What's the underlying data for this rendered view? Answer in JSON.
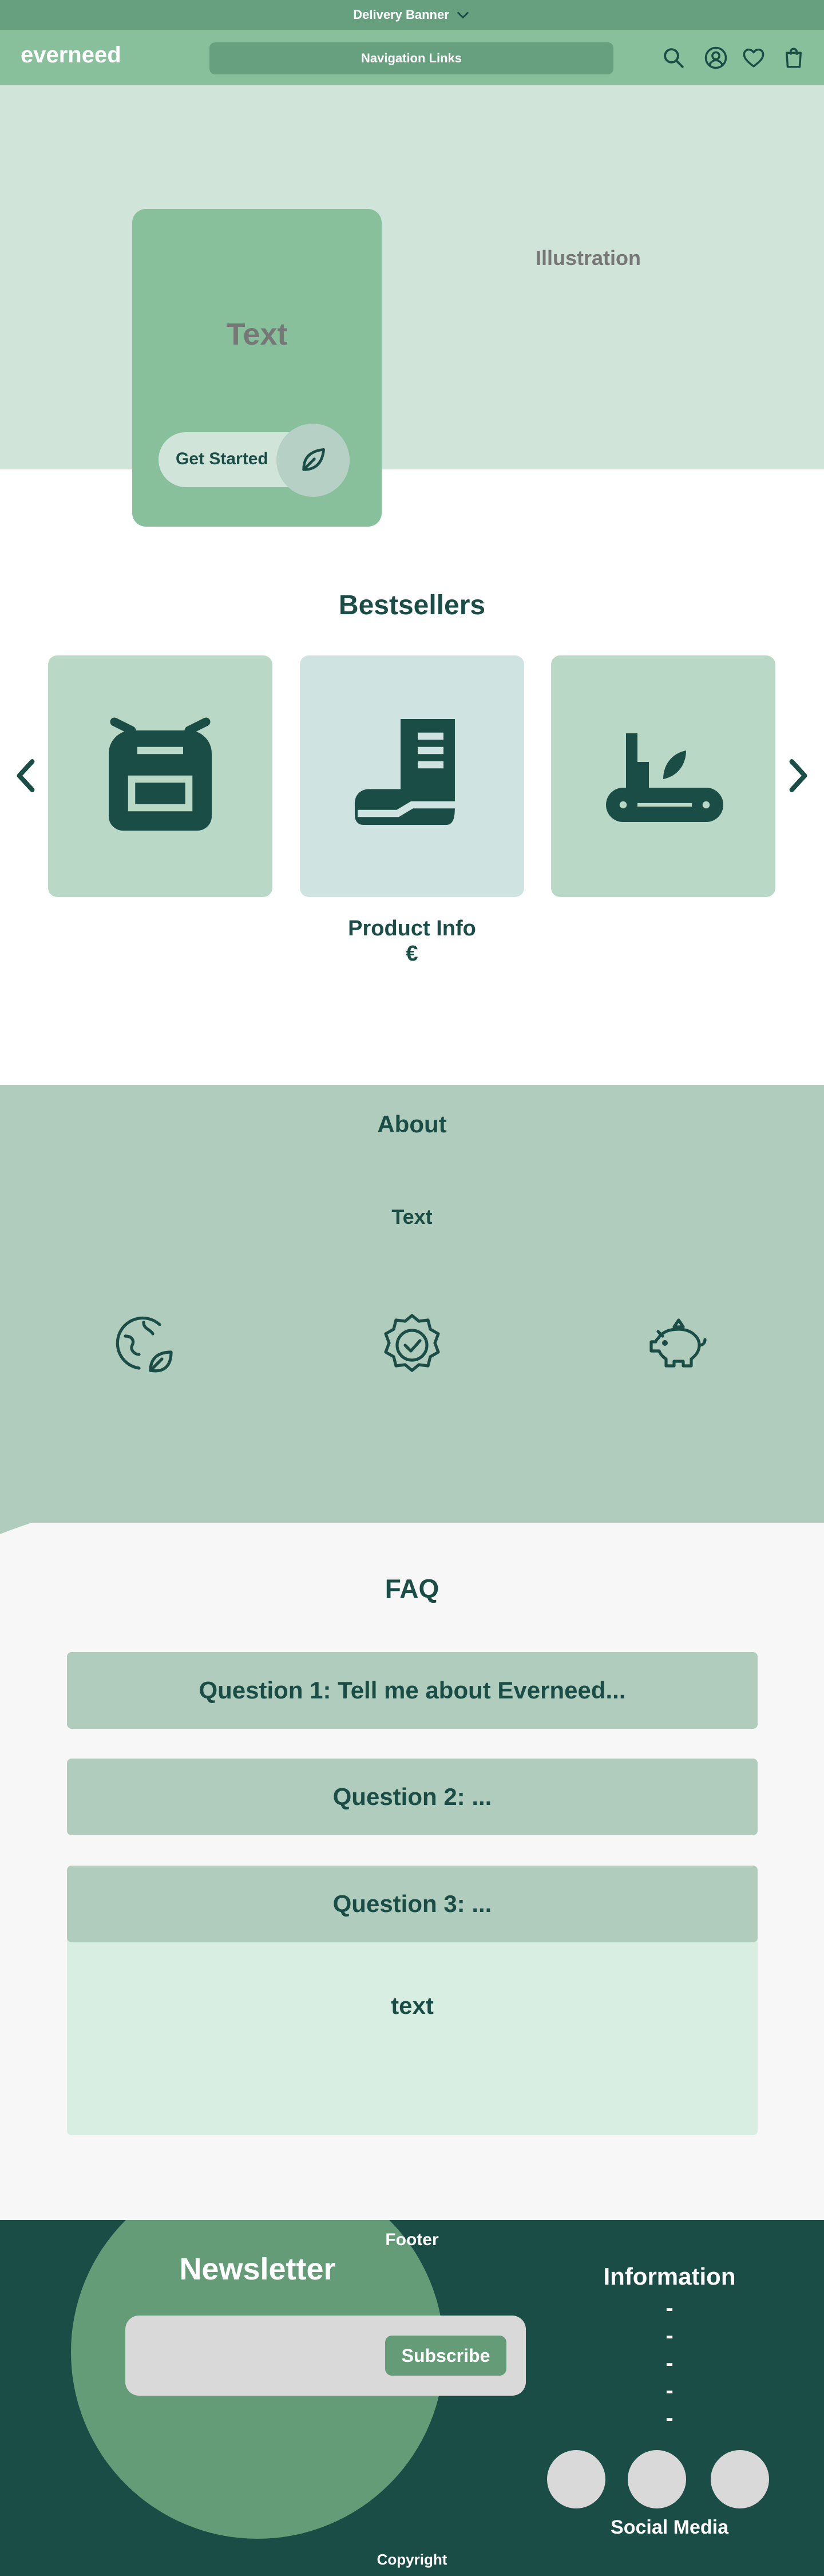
{
  "delivery_banner": {
    "label": "Delivery Banner",
    "icon": "chevron-down-icon"
  },
  "header": {
    "logo": "everneed",
    "nav_label": "Navigation Links",
    "icons": [
      "search-icon",
      "account-icon",
      "heart-icon",
      "bag-icon"
    ]
  },
  "hero": {
    "illustration_label": "Illustration",
    "text": "Text",
    "cta_label": "Get Started",
    "cta_icon": "leaf-icon"
  },
  "bestsellers": {
    "title": "Bestsellers",
    "products": [
      {
        "icon": "backpack-icon",
        "bg": "#b9d8c6"
      },
      {
        "icon": "boot-icon",
        "bg": "#cfe3e0"
      },
      {
        "icon": "multitool-icon",
        "bg": "#b9d8c6"
      }
    ],
    "product_info": "Product Info",
    "price_symbol": "€"
  },
  "about": {
    "title": "About",
    "text": "Text",
    "icons": [
      "eco-globe-icon",
      "badge-check-icon",
      "piggy-bank-icon"
    ]
  },
  "faq": {
    "title": "FAQ",
    "questions": [
      "Question 1: Tell me about Everneed...",
      "Question 2: ...",
      "Question 3: ..."
    ],
    "open_answer": "text"
  },
  "footer": {
    "label": "Footer",
    "newsletter_title": "Newsletter",
    "subscribe_label": "Subscribe",
    "info_title": "Information",
    "info_items": [
      "-",
      "-",
      "-",
      "-",
      "-"
    ],
    "social_label": "Social Media",
    "copyright": "Copyright"
  },
  "colors": {
    "banner": "#67a07f",
    "header": "#87c09b",
    "hero_bg": "#d0e4da",
    "dark_green": "#1a4d45",
    "about_bg": "#b0ccbd",
    "faq_answer_bg": "#d8eee2",
    "footer_bg": "#1a4d45"
  }
}
